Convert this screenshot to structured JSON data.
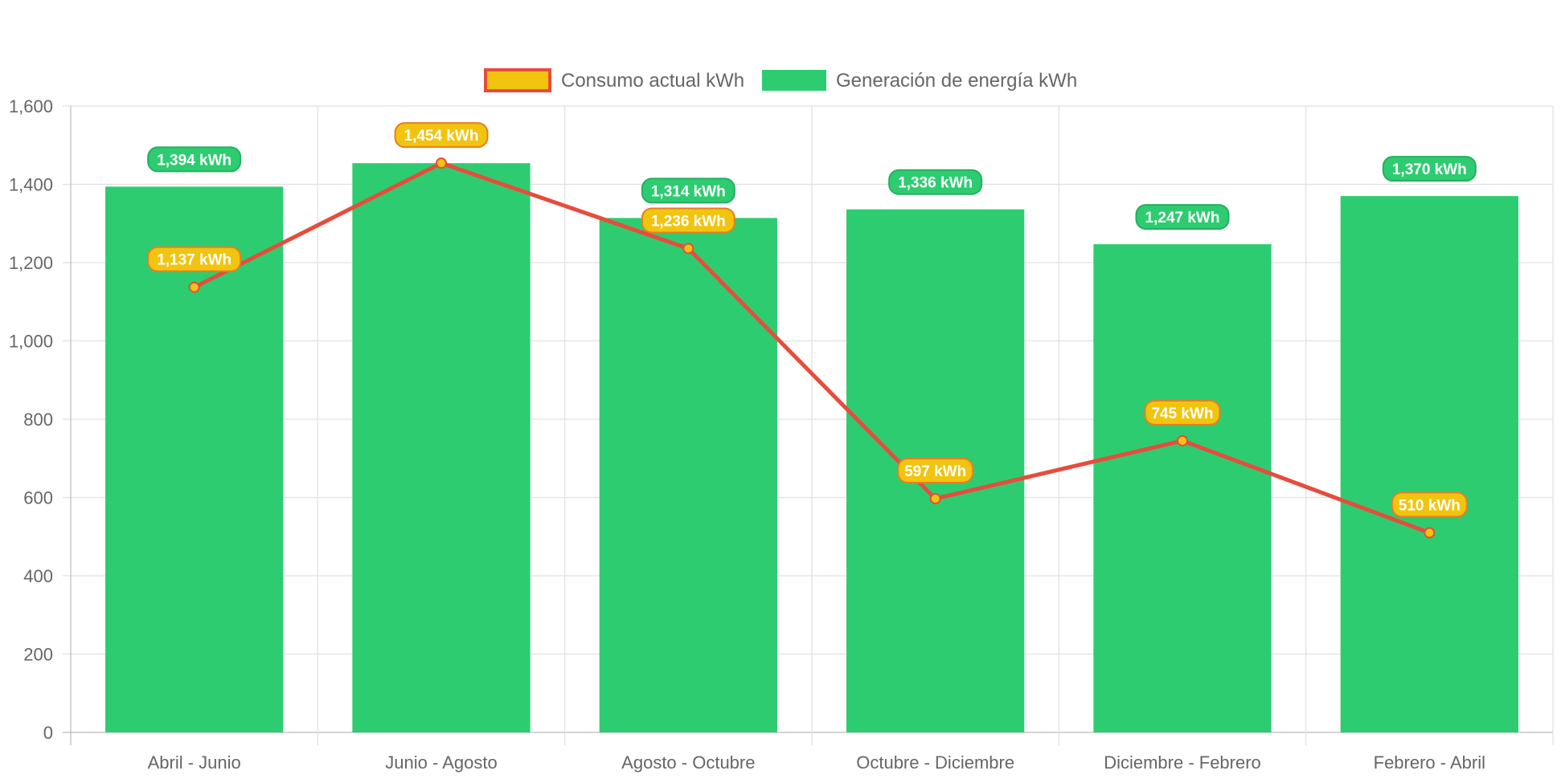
{
  "chart_data": {
    "type": "bar",
    "categories": [
      "Abril - Junio",
      "Junio - Agosto",
      "Agosto - Octubre",
      "Octubre - Diciembre",
      "Diciembre - Febrero",
      "Febrero - Abril"
    ],
    "series": [
      {
        "name": "Consumo actual kWh",
        "type": "line",
        "values": [
          1137,
          1454,
          1236,
          597,
          745,
          510
        ],
        "labels": [
          "1,137 kWh",
          "1,454 kWh",
          "1,236 kWh",
          "597 kWh",
          "745 kWh",
          "510 kWh"
        ],
        "color": "#e74c3c",
        "fill": "#f1c40f"
      },
      {
        "name": "Generación de energía kWh",
        "type": "bar",
        "values": [
          1394,
          1454,
          1314,
          1336,
          1247,
          1370
        ],
        "labels": [
          "1,394 kWh",
          "",
          "1,314 kWh",
          "1,336 kWh",
          "1,247 kWh",
          "1,370 kWh"
        ],
        "color": "#2ecc71",
        "border": "#27ae60"
      }
    ],
    "title": "",
    "xlabel": "",
    "ylabel": "",
    "ylim": [
      0,
      1600
    ],
    "yticks": [
      "0",
      "200",
      "400",
      "600",
      "800",
      "1,000",
      "1,200",
      "1,400",
      "1,600"
    ],
    "grid": true,
    "legend_position": "top"
  }
}
